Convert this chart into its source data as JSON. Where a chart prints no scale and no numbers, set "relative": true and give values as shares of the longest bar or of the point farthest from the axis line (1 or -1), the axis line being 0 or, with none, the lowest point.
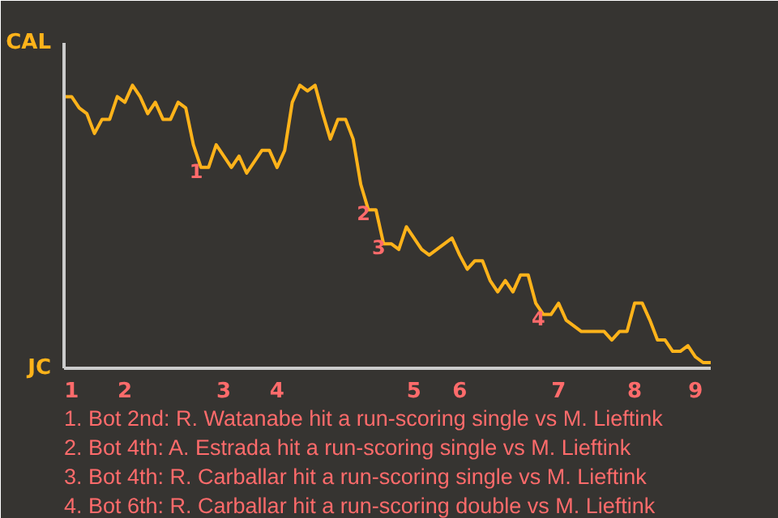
{
  "chart_data": {
    "type": "line",
    "line_style": "solid",
    "marker": "none",
    "relative": true,
    "categories": [
      null,
      "1",
      null,
      null,
      null,
      null,
      null,
      null,
      "2",
      null,
      null,
      null,
      null,
      null,
      null,
      null,
      null,
      null,
      null,
      null,
      null,
      "3",
      null,
      null,
      null,
      null,
      null,
      null,
      "4",
      null,
      null,
      null,
      null,
      null,
      null,
      null,
      null,
      null,
      null,
      null,
      null,
      null,
      null,
      null,
      null,
      null,
      "5",
      null,
      null,
      null,
      null,
      null,
      "6",
      null,
      null,
      null,
      null,
      null,
      null,
      null,
      null,
      null,
      null,
      null,
      null,
      "7",
      null,
      null,
      null,
      null,
      null,
      null,
      null,
      null,
      null,
      "8",
      null,
      null,
      null,
      null,
      null,
      null,
      null,
      "9",
      null,
      null
    ],
    "series": [
      {
        "color": "#ffb31a",
        "values": [
          0.96,
          0.96,
          0.92,
          0.9,
          0.83,
          0.88,
          0.88,
          0.96,
          0.94,
          1,
          0.96,
          0.9,
          0.94,
          0.88,
          0.88,
          0.94,
          0.92,
          0.79,
          0.71,
          0.71,
          0.79,
          0.75,
          0.71,
          0.75,
          0.69,
          0.73,
          0.77,
          0.77,
          0.71,
          0.77,
          0.94,
          1,
          0.98,
          1,
          0.9,
          0.81,
          0.88,
          0.88,
          0.81,
          0.65,
          0.56,
          0.56,
          0.44,
          0.44,
          0.42,
          0.5,
          0.46,
          0.42,
          0.4,
          0.42,
          0.44,
          0.46,
          0.4,
          0.35,
          0.38,
          0.38,
          0.31,
          0.27,
          0.31,
          0.27,
          0.33,
          0.33,
          0.23,
          0.19,
          0.19,
          0.23,
          0.17,
          0.15,
          0.13,
          0.13,
          0.13,
          0.13,
          0.1,
          0.13,
          0.13,
          0.23,
          0.23,
          0.17,
          0.1,
          0.1,
          0.06,
          0.06,
          0.08,
          0.04,
          0.02,
          0.02
        ]
      }
    ],
    "annotations": [
      "CAL",
      "JC",
      {
        "text": "1",
        "y": 0.71
      },
      {
        "text": "2",
        "y": 0.56
      },
      {
        "text": "3",
        "y": 0.44
      },
      {
        "text": "4",
        "y": 0.19
      },
      "1. Bot 2nd: R. Watanabe hit a run-scoring single vs M. Lieftink",
      "2. Bot 4th: A. Estrada hit a run-scoring single vs M. Lieftink",
      "3. Bot 4th: R. Carballar hit a run-scoring single vs M. Lieftink",
      "4. Bot 6th: R. Carballar hit a run-scoring double vs M. Lieftink"
    ]
  }
}
